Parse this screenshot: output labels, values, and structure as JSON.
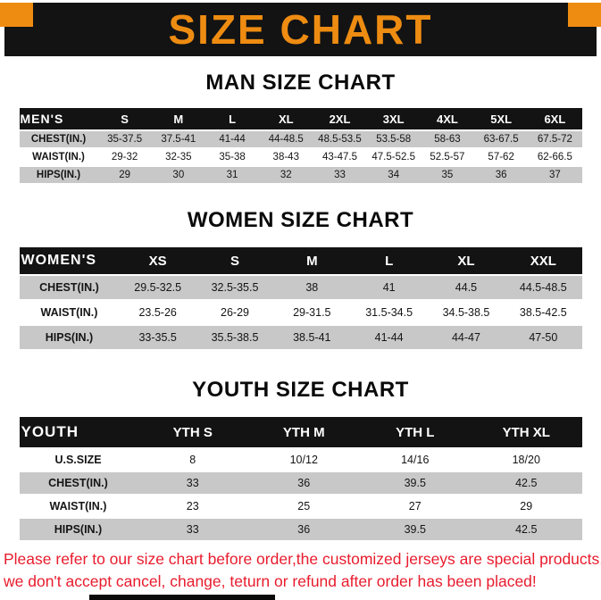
{
  "banner": {
    "title": "SIZE CHART"
  },
  "man": {
    "heading": "MAN SIZE CHART",
    "columns": [
      "MEN'S",
      "S",
      "M",
      "L",
      "XL",
      "2XL",
      "3XL",
      "4XL",
      "5XL",
      "6XL"
    ],
    "rows": [
      [
        "CHEST(IN.)",
        "35-37.5",
        "37.5-41",
        "41-44",
        "44-48.5",
        "48.5-53.5",
        "53.5-58",
        "58-63",
        "63-67.5",
        "67.5-72"
      ],
      [
        "WAIST(IN.)",
        "29-32",
        "32-35",
        "35-38",
        "38-43",
        "43-47.5",
        "47.5-52.5",
        "52.5-57",
        "57-62",
        "62-66.5"
      ],
      [
        "HIPS(IN.)",
        "29",
        "30",
        "31",
        "32",
        "33",
        "34",
        "35",
        "36",
        "37"
      ]
    ]
  },
  "women": {
    "heading": "WOMEN SIZE CHART",
    "columns": [
      "WOMEN'S",
      "XS",
      "S",
      "M",
      "L",
      "XL",
      "XXL"
    ],
    "rows": [
      [
        "CHEST(IN.)",
        "29.5-32.5",
        "32.5-35.5",
        "38",
        "41",
        "44.5",
        "44.5-48.5"
      ],
      [
        "WAIST(IN.)",
        "23.5-26",
        "26-29",
        "29-31.5",
        "31.5-34.5",
        "34.5-38.5",
        "38.5-42.5"
      ],
      [
        "HIPS(IN.)",
        "33-35.5",
        "35.5-38.5",
        "38.5-41",
        "41-44",
        "44-47",
        "47-50"
      ]
    ]
  },
  "youth": {
    "heading": "YOUTH SIZE CHART",
    "columns": [
      "YOUTH",
      "YTH S",
      "YTH M",
      "YTH L",
      "YTH XL"
    ],
    "rows": [
      [
        "U.S.SIZE",
        "8",
        "10/12",
        "14/16",
        "18/20"
      ],
      [
        "CHEST(IN.)",
        "33",
        "36",
        "39.5",
        "42.5"
      ],
      [
        "WAIST(IN.)",
        "23",
        "25",
        "27",
        "29"
      ],
      [
        "HIPS(IN.)",
        "33",
        "36",
        "39.5",
        "42.5"
      ]
    ]
  },
  "footer": {
    "line1": "Please refer to our size chart before order,the customized jerseys are special products,",
    "line2": "we don't accept cancel, change, teturn or refund after order has been placed!"
  },
  "colors": {
    "accent_orange": "#EE8C12",
    "banner_bg": "#131313",
    "row_alt_gray": "#C8C8C8",
    "footer_red": "#E81C2D"
  }
}
